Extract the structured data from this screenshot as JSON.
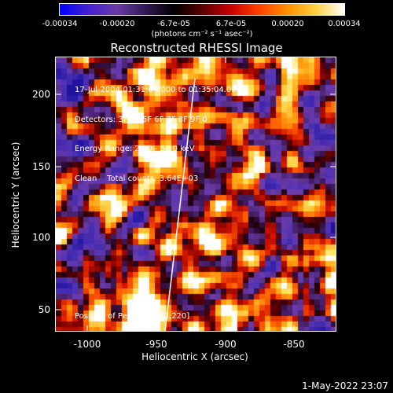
{
  "colorbar": {
    "tick_labels": [
      "-0.00034",
      "-0.00020",
      "-6.7e-05",
      "6.7e-05",
      "0.00020",
      "0.00034"
    ],
    "units": "(photons cm⁻² s⁻¹ asec⁻²)",
    "colors": [
      "#0000ff",
      "#4422cc",
      "#6a3aa8",
      "#331a55",
      "#000000",
      "#5a0000",
      "#c80000",
      "#ff4000",
      "#ff9000",
      "#ffd040",
      "#ffffff"
    ]
  },
  "plot": {
    "title": "Reconstructed RHESSI Image",
    "info_lines": [
      "17-Jul-2004 01:31:04.000 to 01:35:04.000",
      "Detectors: 3F 4F 5F 6F 7F 8F 9F 0",
      "Energy Range: 25.0 - 50.0 keV",
      "Clean    Total counts: 3.64E+03"
    ],
    "peak_label": "Position of Peak = [-953,220]",
    "xlabel": "Heliocentric X (arcsec)",
    "ylabel": "Heliocentric Y (arcsec)",
    "x_ticks": [
      "-1000",
      "-950",
      "-900",
      "-850"
    ],
    "y_ticks": [
      "200",
      "150",
      "100",
      "50"
    ],
    "x_range": [
      -1015,
      -828
    ],
    "y_range": [
      35,
      219
    ]
  },
  "timestamp": "1-May-2022 23:07"
}
